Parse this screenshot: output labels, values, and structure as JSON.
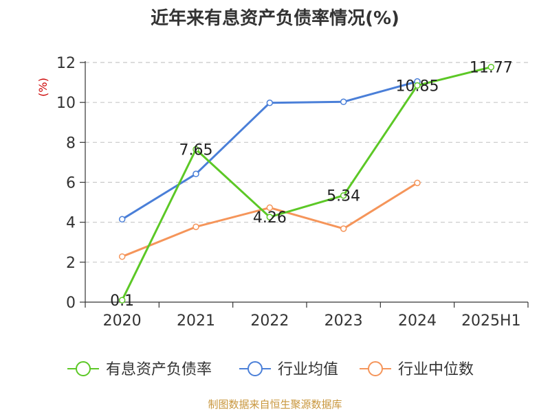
{
  "title": "近年来有息资产负债率情况(%)",
  "source": "制图数据来自恒生聚源数据库",
  "chart_data": {
    "type": "line",
    "title": "近年来有息资产负债率情况(%)",
    "ylabel": "(%)",
    "categories": [
      "2020",
      "2021",
      "2022",
      "2023",
      "2024",
      "2025H1"
    ],
    "ylim": [
      0,
      12
    ],
    "yticks": [
      0,
      2,
      4,
      6,
      8,
      10,
      12
    ],
    "grid": true,
    "legend_position": "bottom",
    "series": [
      {
        "name": "有息资产负债率",
        "color": "#5cc826",
        "values": [
          0.1,
          7.65,
          4.26,
          5.34,
          10.85,
          11.77
        ],
        "labels": [
          "0.1",
          "7.65",
          "4.26",
          "5.34",
          "10.85",
          "11.77"
        ]
      },
      {
        "name": "行业均值",
        "color": "#4a7fd8",
        "values": [
          4.15,
          6.42,
          9.98,
          10.03,
          11.05,
          null
        ]
      },
      {
        "name": "行业中位数",
        "color": "#f5955a",
        "values": [
          2.28,
          3.77,
          4.73,
          3.68,
          5.97,
          null
        ]
      }
    ]
  }
}
